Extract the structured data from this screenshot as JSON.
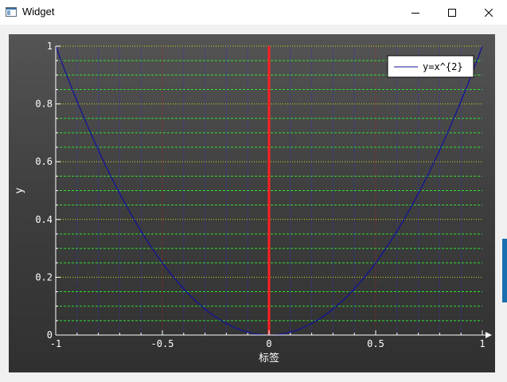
{
  "window": {
    "title": "Widget",
    "icon": "app-window-icon",
    "controls": [
      "minimize-icon",
      "maximize-icon",
      "close-icon"
    ]
  },
  "chart_data": {
    "type": "line",
    "title": "",
    "xlabel": "标签",
    "ylabel": "y",
    "xlim": [
      -1,
      1
    ],
    "ylim": [
      0,
      1
    ],
    "x_ticks": [
      "-1",
      "-0.5",
      "0",
      "0.5",
      "1"
    ],
    "y_ticks": [
      "0",
      "0.2",
      "0.4",
      "0.6",
      "0.8",
      "1"
    ],
    "grid": true,
    "legend": {
      "position": "top-right",
      "entries": [
        "y=x^{2}"
      ]
    },
    "series": [
      {
        "name": "y=x^{2}",
        "color": "#1010a0",
        "function": "x^2",
        "x": [
          -1,
          -0.9,
          -0.8,
          -0.7,
          -0.6,
          -0.5,
          -0.4,
          -0.3,
          -0.2,
          -0.1,
          0,
          0.1,
          0.2,
          0.3,
          0.4,
          0.5,
          0.6,
          0.7,
          0.8,
          0.9,
          1
        ],
        "y": [
          1,
          0.81,
          0.64,
          0.49,
          0.36,
          0.25,
          0.16,
          0.09,
          0.04,
          0.01,
          0,
          0.01,
          0.04,
          0.09,
          0.16,
          0.25,
          0.36,
          0.49,
          0.64,
          0.81,
          1
        ]
      }
    ],
    "vertical_marker": {
      "x": 0,
      "color": "#ff2020"
    },
    "colors": {
      "background_top": "#545454",
      "background_bottom": "#303030",
      "axis": "#ffffff",
      "x_major_grid": "#b02020",
      "x_minor_grid": "#3030d0",
      "y_major_grid": "#d8d820",
      "y_minor_grid": "#30e030"
    }
  }
}
